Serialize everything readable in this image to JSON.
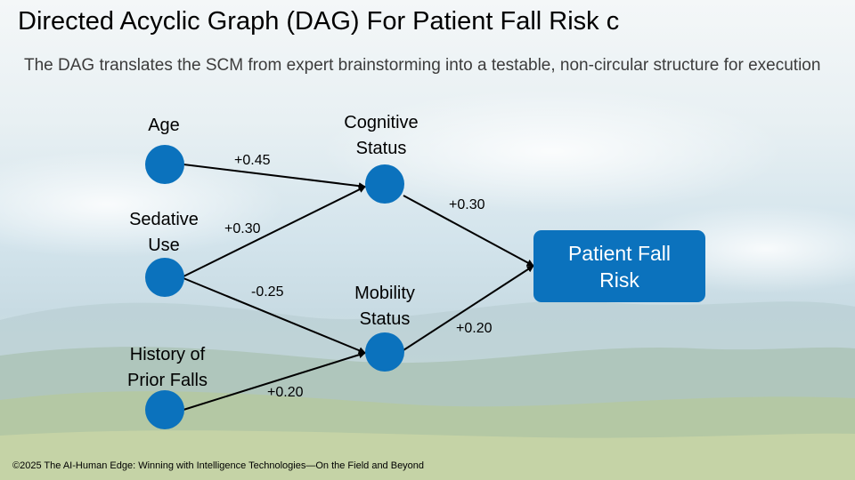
{
  "title": "Directed Acyclic Graph (DAG) For Patient Fall Risk c",
  "subtitle": "The DAG translates the SCM from expert brainstorming into a testable, non-circular structure for execution",
  "nodes": {
    "age": "Age",
    "sedative_use": "Sedative Use",
    "history_prior_falls": "History of Prior Falls",
    "cognitive_status": "Cognitive Status",
    "mobility_status": "Mobility Status",
    "patient_fall_risk": "Patient Fall Risk"
  },
  "edges": [
    {
      "from": "Age",
      "to": "Cognitive Status",
      "weight": "+0.45"
    },
    {
      "from": "Sedative Use",
      "to": "Cognitive Status",
      "weight": "+0.30"
    },
    {
      "from": "Sedative Use",
      "to": "Mobility Status",
      "weight": "-0.25"
    },
    {
      "from": "History of Prior Falls",
      "to": "Mobility Status",
      "weight": "+0.20"
    },
    {
      "from": "Cognitive Status",
      "to": "Patient Fall Risk",
      "weight": "+0.30"
    },
    {
      "from": "Mobility Status",
      "to": "Patient Fall Risk",
      "weight": "+0.20"
    }
  ],
  "colors": {
    "node": "#0b72bd",
    "edge": "#000000"
  },
  "footer": "©2025 The AI-Human Edge: Winning with Intelligence Technologies—On the Field and Beyond"
}
